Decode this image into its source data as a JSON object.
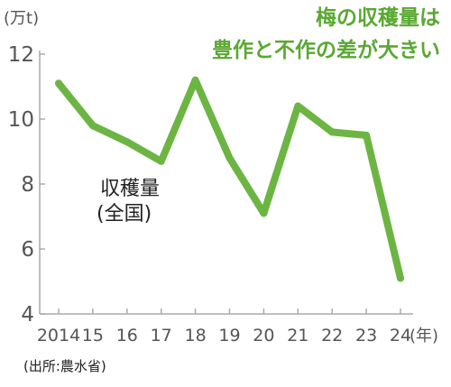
{
  "chart_data": {
    "type": "line",
    "title_lines": [
      "梅の収穫量は",
      "豊作と不作の差が大きい"
    ],
    "y_unit": "(万t)",
    "x_unit": "(年)",
    "categories": [
      "2014",
      "15",
      "16",
      "17",
      "18",
      "19",
      "20",
      "21",
      "22",
      "23",
      "24"
    ],
    "series": [
      {
        "name_lines": [
          "収穫量",
          "(全国)"
        ],
        "values": [
          11.1,
          9.8,
          9.3,
          8.7,
          11.2,
          8.8,
          7.1,
          10.4,
          9.6,
          9.5,
          5.1
        ]
      }
    ],
    "ylim": [
      4,
      12
    ],
    "yticks": [
      "4",
      "6",
      "8",
      "10",
      "12"
    ],
    "source": "(出所:農水省)",
    "colors": {
      "line": "#6cb543",
      "title": "#5aa832",
      "axis": "#aaaaaa",
      "tick_text": "#555555"
    }
  }
}
